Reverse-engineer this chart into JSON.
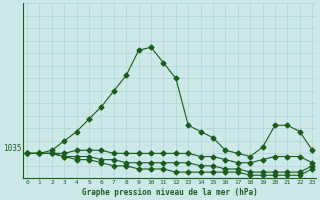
{
  "xlabel": "Graphe pression niveau de la mer (hPa)",
  "background_color": "#cce8e8",
  "plot_bg_color": "#cce8e8",
  "line_color": "#1a5c1a",
  "grid_color": "#b0d4d4",
  "x_ticks": [
    0,
    1,
    2,
    3,
    4,
    5,
    6,
    7,
    8,
    9,
    10,
    11,
    12,
    13,
    14,
    15,
    16,
    17,
    18,
    19,
    20,
    21,
    22,
    23
  ],
  "ylim": [
    1030,
    1058
  ],
  "ytick_value": 1035,
  "series": [
    [
      1034.0,
      1034.0,
      1034.5,
      1036.0,
      1037.5,
      1039.5,
      1041.5,
      1044.0,
      1046.5,
      1050.5,
      1051.0,
      1048.5,
      1046.0,
      1038.5,
      1037.5,
      1036.5,
      1034.5,
      1034.0,
      1033.5,
      1035.0,
      1038.5,
      1038.5,
      1037.5,
      1034.5
    ],
    [
      1034.0,
      1034.0,
      1034.0,
      1034.0,
      1034.5,
      1034.5,
      1034.5,
      1034.0,
      1034.0,
      1034.0,
      1034.0,
      1034.0,
      1034.0,
      1034.0,
      1033.5,
      1033.5,
      1033.0,
      1032.5,
      1032.5,
      1033.0,
      1033.5,
      1033.5,
      1033.5,
      1032.5
    ],
    [
      1034.0,
      1034.0,
      1034.0,
      1033.5,
      1033.5,
      1033.5,
      1033.0,
      1033.0,
      1032.5,
      1032.5,
      1032.5,
      1032.5,
      1032.5,
      1032.5,
      1032.0,
      1032.0,
      1031.5,
      1031.5,
      1031.0,
      1031.0,
      1031.0,
      1031.0,
      1031.0,
      1032.0
    ],
    [
      1034.0,
      1034.0,
      1034.0,
      1033.5,
      1033.0,
      1033.0,
      1032.5,
      1032.0,
      1032.0,
      1031.5,
      1031.5,
      1031.5,
      1031.0,
      1031.0,
      1031.0,
      1031.0,
      1031.0,
      1031.0,
      1030.5,
      1030.5,
      1030.5,
      1030.5,
      1030.5,
      1031.5
    ]
  ],
  "marker": "D",
  "markersize": 2.5,
  "linewidth": 0.8
}
